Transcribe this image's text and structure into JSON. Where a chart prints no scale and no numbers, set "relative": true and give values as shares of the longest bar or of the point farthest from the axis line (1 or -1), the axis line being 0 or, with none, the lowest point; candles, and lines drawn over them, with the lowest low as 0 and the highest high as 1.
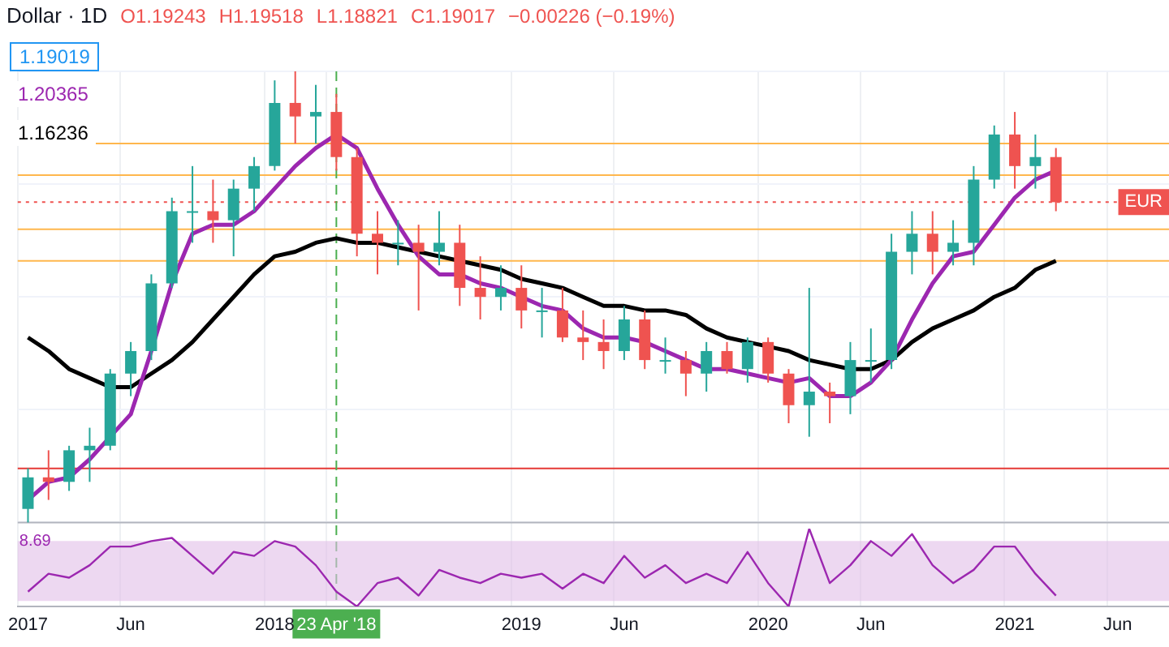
{
  "chart_data": [
    {
      "type": "candlestick",
      "title": "Dollar · 1D",
      "annotations": [
        "O1.19243",
        "H1.19518",
        "L1.18821",
        "C1.19017",
        "−0.00226 (−0.19%)",
        "1.19019",
        "1.20365",
        "1.16236"
      ],
      "categories": [
        "2017",
        null,
        null,
        null,
        null,
        "Jun",
        null,
        null,
        null,
        null,
        null,
        null,
        "2018",
        null,
        null,
        "23 Apr '18",
        null,
        null,
        null,
        null,
        null,
        null,
        null,
        null,
        "2019",
        null,
        null,
        null,
        null,
        "Jun",
        null,
        null,
        null,
        null,
        null,
        null,
        "2020",
        null,
        null,
        null,
        null,
        "Jun",
        null,
        null,
        null,
        null,
        null,
        null,
        "2021",
        null,
        null,
        null,
        null,
        "Jun",
        null,
        null
      ],
      "ohlc": [
        [
          0.03,
          0.12,
          0,
          0.1
        ],
        [
          0.1,
          0.16,
          0.05,
          0.09
        ],
        [
          0.09,
          0.17,
          0.07,
          0.16
        ],
        [
          0.16,
          0.21,
          0.09,
          0.17
        ],
        [
          0.17,
          0.34,
          0.16,
          0.33
        ],
        [
          0.33,
          0.4,
          0.28,
          0.38
        ],
        [
          0.38,
          0.55,
          0.36,
          0.53
        ],
        [
          0.53,
          0.72,
          0.52,
          0.69
        ],
        [
          0.69,
          0.79,
          0.62,
          0.69
        ],
        [
          0.69,
          0.76,
          0.62,
          0.67
        ],
        [
          0.67,
          0.76,
          0.59,
          0.74
        ],
        [
          0.74,
          0.81,
          0.69,
          0.79
        ],
        [
          0.79,
          0.98,
          0.78,
          0.93
        ],
        [
          0.93,
          1,
          0.84,
          0.9
        ],
        [
          0.9,
          0.97,
          0.84,
          0.91
        ],
        [
          0.91,
          0.95,
          0.78,
          0.81
        ],
        [
          0.81,
          0.83,
          0.59,
          0.64
        ],
        [
          0.64,
          0.69,
          0.55,
          0.62
        ],
        [
          0.62,
          0.67,
          0.57,
          0.62
        ],
        [
          0.62,
          0.66,
          0.47,
          0.6
        ],
        [
          0.6,
          0.69,
          0.57,
          0.62
        ],
        [
          0.62,
          0.66,
          0.48,
          0.52
        ],
        [
          0.52,
          0.59,
          0.45,
          0.5
        ],
        [
          0.5,
          0.57,
          0.47,
          0.52
        ],
        [
          0.52,
          0.57,
          0.43,
          0.47
        ],
        [
          0.47,
          0.52,
          0.41,
          0.47
        ],
        [
          0.47,
          0.52,
          0.4,
          0.41
        ],
        [
          0.41,
          0.47,
          0.36,
          0.4
        ],
        [
          0.4,
          0.45,
          0.34,
          0.38
        ],
        [
          0.38,
          0.48,
          0.36,
          0.45
        ],
        [
          0.45,
          0.47,
          0.34,
          0.36
        ],
        [
          0.36,
          0.41,
          0.33,
          0.36
        ],
        [
          0.36,
          0.38,
          0.28,
          0.33
        ],
        [
          0.33,
          0.4,
          0.29,
          0.38
        ],
        [
          0.38,
          0.4,
          0.33,
          0.34
        ],
        [
          0.34,
          0.41,
          0.31,
          0.4
        ],
        [
          0.4,
          0.41,
          0.31,
          0.33
        ],
        [
          0.33,
          0.34,
          0.22,
          0.26
        ],
        [
          0.26,
          0.52,
          0.19,
          0.29
        ],
        [
          0.29,
          0.31,
          0.22,
          0.28
        ],
        [
          0.28,
          0.4,
          0.24,
          0.36
        ],
        [
          0.36,
          0.43,
          0.31,
          0.36
        ],
        [
          0.36,
          0.64,
          0.34,
          0.6
        ],
        [
          0.6,
          0.69,
          0.55,
          0.64
        ],
        [
          0.64,
          0.69,
          0.55,
          0.6
        ],
        [
          0.6,
          0.67,
          0.57,
          0.62
        ],
        [
          0.62,
          0.79,
          0.57,
          0.76
        ],
        [
          0.76,
          0.88,
          0.74,
          0.86
        ],
        [
          0.86,
          0.91,
          0.74,
          0.79
        ],
        [
          0.79,
          0.86,
          0.74,
          0.81
        ],
        [
          0.81,
          0.83,
          0.69,
          0.71
        ],
        null,
        null,
        null,
        null,
        null
      ],
      "series": [
        {
          "type": "line",
          "color": "#9c27b0",
          "values": [
            0.05,
            0.09,
            0.1,
            0.14,
            0.19,
            0.24,
            0.38,
            0.53,
            0.64,
            0.66,
            0.66,
            0.69,
            0.74,
            0.79,
            0.83,
            0.86,
            0.83,
            0.74,
            0.66,
            0.59,
            0.55,
            0.55,
            0.53,
            0.52,
            0.5,
            0.48,
            0.47,
            0.43,
            0.41,
            0.41,
            0.4,
            0.38,
            0.36,
            0.34,
            0.34,
            0.33,
            0.32,
            0.31,
            0.32,
            0.28,
            0.28,
            0.31,
            0.36,
            0.45,
            0.53,
            0.59,
            0.6,
            0.66,
            0.72,
            0.76,
            0.78,
            null,
            null,
            null,
            null,
            null
          ]
        },
        {
          "type": "line",
          "color": "#000000",
          "values": [
            0.41,
            0.38,
            0.34,
            0.32,
            0.3,
            0.3,
            0.33,
            0.36,
            0.4,
            0.45,
            0.5,
            0.55,
            0.59,
            0.6,
            0.62,
            0.63,
            0.62,
            0.62,
            0.61,
            0.6,
            0.59,
            0.58,
            0.57,
            0.56,
            0.54,
            0.53,
            0.52,
            0.5,
            0.48,
            0.48,
            0.47,
            0.47,
            0.46,
            0.43,
            0.41,
            0.4,
            0.39,
            0.38,
            0.36,
            0.35,
            0.34,
            0.34,
            0.36,
            0.4,
            0.43,
            0.45,
            0.47,
            0.5,
            0.52,
            0.56,
            0.58,
            null,
            null,
            null,
            null,
            null
          ]
        }
      ],
      "relative": true,
      "marker": "none",
      "grid": true,
      "tick_labels": "x",
      "ref_lines": [
        {
          "axis": "y",
          "value": 0.84,
          "color": "#ffb74d"
        },
        {
          "axis": "y",
          "value": 0.77,
          "color": "#ffb74d"
        },
        {
          "axis": "y",
          "value": 0.71,
          "color": "#ef5350",
          "line_style": "dotted",
          "label": "EUR"
        },
        {
          "axis": "y",
          "value": 0.65,
          "color": "#ffb74d"
        },
        {
          "axis": "y",
          "value": 0.58,
          "color": "#ffb74d"
        },
        {
          "axis": "y",
          "value": 0.12,
          "color": "#e53935"
        },
        {
          "axis": "x",
          "value": "23 Apr '18",
          "color": "#4caf50",
          "line_style": "dashed"
        }
      ]
    },
    {
      "type": "line",
      "annotations": [
        "8.69"
      ],
      "categories": [
        null,
        null,
        null,
        null,
        null,
        null,
        null,
        null,
        null,
        null,
        null,
        null,
        null,
        null,
        null,
        null,
        null,
        null,
        null,
        null,
        null,
        null,
        null,
        null,
        null,
        null,
        null,
        null,
        null,
        null,
        null,
        null,
        null,
        null,
        null,
        null,
        null,
        null,
        null,
        null,
        null,
        null,
        null,
        null,
        null,
        null,
        null,
        null,
        null,
        null,
        null
      ],
      "series": [
        {
          "color": "#9c27b0",
          "values": [
            0.19,
            0.42,
            0.37,
            0.53,
            0.77,
            0.77,
            0.84,
            0.88,
            0.65,
            0.42,
            0.7,
            0.65,
            0.84,
            0.77,
            0.53,
            0.19,
            0,
            0.3,
            0.37,
            0.14,
            0.47,
            0.37,
            0.3,
            0.42,
            0.37,
            0.42,
            0.23,
            0.42,
            0.3,
            0.65,
            0.37,
            0.53,
            0.3,
            0.42,
            0.3,
            0.7,
            0.3,
            0,
            1,
            0.3,
            0.53,
            0.84,
            0.65,
            0.93,
            0.53,
            0.3,
            0.47,
            0.77,
            0.77,
            0.42,
            0.14
          ]
        }
      ],
      "relative": true,
      "marker": "none",
      "tick_labels": false,
      "bands": [
        {
          "axis": "y",
          "from": 0.07,
          "to": 0.84,
          "color": "#e1bee7"
        }
      ]
    }
  ]
}
